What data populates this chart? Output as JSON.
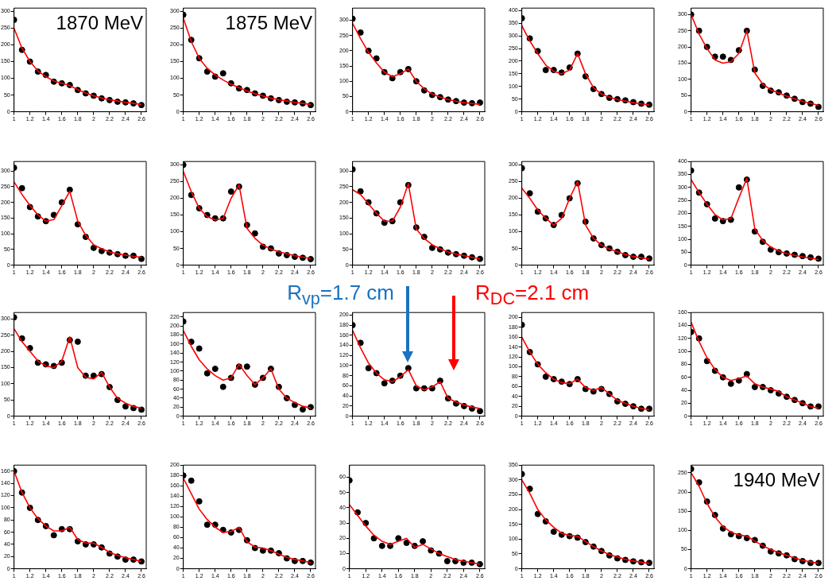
{
  "chart_data": [
    {
      "type": "scatter",
      "x": [
        1.0,
        1.1,
        1.2,
        1.3,
        1.4,
        1.5,
        1.6,
        1.7,
        1.8,
        1.9,
        2.0,
        2.1,
        2.2,
        2.3,
        2.4,
        2.5,
        2.6
      ],
      "xlim": [
        1,
        2.66
      ],
      "xticks": [
        1,
        1.2,
        1.4,
        1.6,
        1.8,
        2,
        2.2,
        2.4,
        2.6
      ],
      "ylim": [
        0,
        310
      ],
      "yticks": [
        0,
        50,
        100,
        150,
        200,
        250,
        300
      ],
      "annotations": [
        "1870 MeV"
      ],
      "series": [
        {
          "marker": "circle",
          "color": "#000000",
          "values": [
            275,
            185,
            150,
            120,
            110,
            90,
            85,
            80,
            65,
            55,
            48,
            40,
            35,
            30,
            28,
            25,
            20
          ]
        },
        {
          "type": "line",
          "color": "#ff0000",
          "values": [
            250,
            190,
            150,
            122,
            105,
            92,
            85,
            78,
            66,
            56,
            48,
            41,
            36,
            32,
            28,
            25,
            22
          ]
        }
      ]
    },
    {
      "type": "scatter",
      "x": [
        1.0,
        1.1,
        1.2,
        1.3,
        1.4,
        1.5,
        1.6,
        1.7,
        1.8,
        1.9,
        2.0,
        2.1,
        2.2,
        2.3,
        2.4,
        2.5,
        2.6
      ],
      "xlim": [
        1,
        2.66
      ],
      "xticks": [
        1,
        1.2,
        1.4,
        1.6,
        1.8,
        2,
        2.2,
        2.4,
        2.6
      ],
      "ylim": [
        0,
        310
      ],
      "yticks": [
        0,
        50,
        100,
        150,
        200,
        250,
        300
      ],
      "annotations": [
        "1875 MeV"
      ],
      "series": [
        {
          "marker": "circle",
          "color": "#000000",
          "values": [
            290,
            215,
            160,
            120,
            105,
            115,
            85,
            70,
            65,
            55,
            48,
            40,
            35,
            30,
            28,
            25,
            20
          ]
        },
        {
          "type": "line",
          "color": "#ff0000",
          "values": [
            280,
            210,
            160,
            130,
            110,
            95,
            82,
            72,
            62,
            54,
            47,
            41,
            36,
            32,
            28,
            25,
            22
          ]
        }
      ]
    },
    {
      "type": "scatter",
      "x": [
        1.0,
        1.1,
        1.2,
        1.3,
        1.4,
        1.5,
        1.6,
        1.7,
        1.8,
        1.9,
        2.0,
        2.1,
        2.2,
        2.3,
        2.4,
        2.5,
        2.6
      ],
      "xlim": [
        1,
        2.66
      ],
      "xticks": [
        1,
        1.2,
        1.4,
        1.6,
        1.8,
        2,
        2.2,
        2.4,
        2.6
      ],
      "ylim": [
        0,
        340
      ],
      "yticks": [
        0,
        50,
        100,
        150,
        200,
        250,
        300
      ],
      "series": [
        {
          "marker": "circle",
          "color": "#000000",
          "values": [
            305,
            260,
            200,
            175,
            130,
            110,
            130,
            140,
            100,
            70,
            55,
            48,
            40,
            35,
            30,
            28,
            30
          ]
        },
        {
          "type": "line",
          "color": "#ff0000",
          "values": [
            290,
            240,
            195,
            160,
            130,
            115,
            125,
            140,
            100,
            75,
            58,
            48,
            40,
            34,
            30,
            27,
            24
          ]
        }
      ]
    },
    {
      "type": "scatter",
      "x": [
        1.0,
        1.1,
        1.2,
        1.3,
        1.4,
        1.5,
        1.6,
        1.7,
        1.8,
        1.9,
        2.0,
        2.1,
        2.2,
        2.3,
        2.4,
        2.5,
        2.6
      ],
      "xlim": [
        1,
        2.66
      ],
      "xticks": [
        1,
        1.2,
        1.4,
        1.6,
        1.8,
        2,
        2.2,
        2.4,
        2.6
      ],
      "ylim": [
        0,
        410
      ],
      "yticks": [
        0,
        50,
        100,
        150,
        200,
        250,
        300,
        350,
        400
      ],
      "series": [
        {
          "marker": "circle",
          "color": "#000000",
          "values": [
            370,
            290,
            240,
            165,
            165,
            155,
            175,
            230,
            140,
            90,
            70,
            55,
            50,
            45,
            38,
            32,
            28
          ]
        },
        {
          "type": "line",
          "color": "#ff0000",
          "values": [
            340,
            280,
            230,
            185,
            160,
            150,
            165,
            230,
            150,
            95,
            70,
            58,
            48,
            42,
            36,
            31,
            27
          ]
        }
      ]
    },
    {
      "type": "scatter",
      "x": [
        1.0,
        1.1,
        1.2,
        1.3,
        1.4,
        1.5,
        1.6,
        1.7,
        1.8,
        1.9,
        2.0,
        2.1,
        2.2,
        2.3,
        2.4,
        2.5,
        2.6
      ],
      "xlim": [
        1,
        2.66
      ],
      "xticks": [
        1,
        1.2,
        1.4,
        1.6,
        1.8,
        2,
        2.2,
        2.4,
        2.6
      ],
      "ylim": [
        0,
        320
      ],
      "yticks": [
        0,
        50,
        100,
        150,
        200,
        250,
        300
      ],
      "series": [
        {
          "marker": "circle",
          "color": "#000000",
          "values": [
            300,
            250,
            200,
            170,
            170,
            160,
            190,
            250,
            130,
            80,
            65,
            60,
            50,
            40,
            30,
            25,
            15
          ]
        },
        {
          "type": "line",
          "color": "#ff0000",
          "values": [
            300,
            240,
            195,
            160,
            150,
            155,
            180,
            250,
            120,
            85,
            68,
            58,
            48,
            40,
            32,
            26,
            20
          ]
        }
      ]
    },
    {
      "type": "scatter",
      "x": [
        1.0,
        1.1,
        1.2,
        1.3,
        1.4,
        1.5,
        1.6,
        1.7,
        1.8,
        1.9,
        2.0,
        2.1,
        2.2,
        2.3,
        2.4,
        2.5,
        2.6
      ],
      "xlim": [
        1,
        2.66
      ],
      "xticks": [
        1,
        1.2,
        1.4,
        1.6,
        1.8,
        2,
        2.2,
        2.4,
        2.6
      ],
      "ylim": [
        0,
        330
      ],
      "yticks": [
        0,
        50,
        100,
        150,
        200,
        250,
        300
      ],
      "series": [
        {
          "marker": "circle",
          "color": "#000000",
          "values": [
            310,
            245,
            185,
            155,
            140,
            160,
            200,
            240,
            130,
            90,
            55,
            45,
            40,
            35,
            30,
            30,
            20
          ]
        },
        {
          "type": "line",
          "color": "#ff0000",
          "values": [
            265,
            225,
            190,
            160,
            140,
            145,
            190,
            235,
            140,
            95,
            65,
            52,
            42,
            36,
            32,
            28,
            25
          ]
        }
      ]
    },
    {
      "type": "scatter",
      "x": [
        1.0,
        1.1,
        1.2,
        1.3,
        1.4,
        1.5,
        1.6,
        1.7,
        1.8,
        1.9,
        2.0,
        2.1,
        2.2,
        2.3,
        2.4,
        2.5,
        2.6
      ],
      "xlim": [
        1,
        2.66
      ],
      "xticks": [
        1,
        1.2,
        1.4,
        1.6,
        1.8,
        2,
        2.2,
        2.4,
        2.6
      ],
      "ylim": [
        0,
        310
      ],
      "yticks": [
        0,
        50,
        100,
        150,
        200,
        250,
        300
      ],
      "series": [
        {
          "marker": "circle",
          "color": "#000000",
          "values": [
            300,
            210,
            170,
            150,
            140,
            140,
            220,
            235,
            120,
            95,
            55,
            50,
            35,
            30,
            25,
            22,
            18
          ]
        },
        {
          "type": "line",
          "color": "#ff0000",
          "values": [
            280,
            220,
            170,
            145,
            135,
            140,
            200,
            240,
            110,
            80,
            60,
            48,
            40,
            34,
            28,
            24,
            20
          ]
        }
      ]
    },
    {
      "type": "scatter",
      "x": [
        1.0,
        1.1,
        1.2,
        1.3,
        1.4,
        1.5,
        1.6,
        1.7,
        1.8,
        1.9,
        2.0,
        2.1,
        2.2,
        2.3,
        2.4,
        2.5,
        2.6
      ],
      "xlim": [
        1,
        2.66
      ],
      "xticks": [
        1,
        1.2,
        1.4,
        1.6,
        1.8,
        2,
        2.2,
        2.4,
        2.6
      ],
      "ylim": [
        0,
        330
      ],
      "yticks": [
        0,
        50,
        100,
        150,
        200,
        250,
        300
      ],
      "series": [
        {
          "marker": "circle",
          "color": "#000000",
          "values": [
            305,
            235,
            200,
            165,
            135,
            140,
            200,
            255,
            120,
            90,
            55,
            50,
            40,
            35,
            30,
            25,
            20
          ]
        },
        {
          "type": "line",
          "color": "#ff0000",
          "values": [
            240,
            225,
            195,
            165,
            140,
            140,
            185,
            260,
            115,
            85,
            65,
            52,
            42,
            35,
            30,
            25,
            20
          ]
        }
      ]
    },
    {
      "type": "scatter",
      "x": [
        1.0,
        1.1,
        1.2,
        1.3,
        1.4,
        1.5,
        1.6,
        1.7,
        1.8,
        1.9,
        2.0,
        2.1,
        2.2,
        2.3,
        2.4,
        2.5,
        2.6
      ],
      "xlim": [
        1,
        2.66
      ],
      "xticks": [
        1,
        1.2,
        1.4,
        1.6,
        1.8,
        2,
        2.2,
        2.4,
        2.6
      ],
      "ylim": [
        0,
        310
      ],
      "yticks": [
        0,
        50,
        100,
        150,
        200,
        250,
        300
      ],
      "series": [
        {
          "marker": "circle",
          "color": "#000000",
          "values": [
            290,
            215,
            160,
            140,
            120,
            150,
            200,
            245,
            130,
            80,
            60,
            50,
            40,
            30,
            25,
            25,
            20
          ]
        },
        {
          "type": "line",
          "color": "#ff0000",
          "values": [
            230,
            200,
            165,
            140,
            120,
            140,
            200,
            250,
            120,
            80,
            60,
            48,
            40,
            32,
            26,
            22,
            18
          ]
        }
      ]
    },
    {
      "type": "scatter",
      "x": [
        1.0,
        1.1,
        1.2,
        1.3,
        1.4,
        1.5,
        1.6,
        1.7,
        1.8,
        1.9,
        2.0,
        2.1,
        2.2,
        2.3,
        2.4,
        2.5,
        2.6
      ],
      "xlim": [
        1,
        2.66
      ],
      "xticks": [
        1,
        1.2,
        1.4,
        1.6,
        1.8,
        2,
        2.2,
        2.4,
        2.6
      ],
      "ylim": [
        0,
        400
      ],
      "yticks": [
        0,
        50,
        100,
        150,
        200,
        250,
        300,
        350,
        400
      ],
      "series": [
        {
          "marker": "circle",
          "color": "#000000",
          "values": [
            365,
            280,
            235,
            180,
            170,
            175,
            300,
            330,
            130,
            90,
            60,
            50,
            45,
            40,
            35,
            30,
            25
          ]
        },
        {
          "type": "line",
          "color": "#ff0000",
          "values": [
            330,
            280,
            235,
            195,
            175,
            180,
            260,
            335,
            140,
            95,
            70,
            55,
            45,
            38,
            32,
            27,
            22
          ]
        }
      ]
    },
    {
      "type": "scatter",
      "x": [
        1.0,
        1.1,
        1.2,
        1.3,
        1.4,
        1.5,
        1.6,
        1.7,
        1.8,
        1.9,
        2.0,
        2.1,
        2.2,
        2.3,
        2.4,
        2.5,
        2.6
      ],
      "xlim": [
        1,
        2.66
      ],
      "xticks": [
        1,
        1.2,
        1.4,
        1.6,
        1.8,
        2,
        2.2,
        2.4,
        2.6
      ],
      "ylim": [
        0,
        320
      ],
      "yticks": [
        0,
        50,
        100,
        150,
        200,
        250,
        300
      ],
      "series": [
        {
          "marker": "circle",
          "color": "#000000",
          "values": [
            305,
            240,
            210,
            165,
            160,
            155,
            165,
            235,
            230,
            125,
            125,
            130,
            90,
            50,
            30,
            25,
            20
          ]
        },
        {
          "type": "line",
          "color": "#ff0000",
          "values": [
            270,
            230,
            200,
            170,
            155,
            150,
            170,
            245,
            150,
            120,
            115,
            135,
            90,
            55,
            40,
            30,
            25
          ]
        }
      ]
    },
    {
      "type": "scatter",
      "x": [
        1.0,
        1.1,
        1.2,
        1.3,
        1.4,
        1.5,
        1.6,
        1.7,
        1.8,
        1.9,
        2.0,
        2.1,
        2.2,
        2.3,
        2.4,
        2.5,
        2.6
      ],
      "xlim": [
        1,
        2.66
      ],
      "xticks": [
        1,
        1.2,
        1.4,
        1.6,
        1.8,
        2,
        2.2,
        2.4,
        2.6
      ],
      "ylim": [
        0,
        230
      ],
      "yticks": [
        0,
        20,
        40,
        60,
        80,
        100,
        120,
        140,
        160,
        180,
        200,
        220
      ],
      "series": [
        {
          "marker": "circle",
          "color": "#000000",
          "values": [
            210,
            165,
            150,
            95,
            105,
            65,
            85,
            110,
            110,
            70,
            85,
            105,
            65,
            40,
            25,
            15,
            20
          ]
        },
        {
          "type": "line",
          "color": "#ff0000",
          "values": [
            190,
            155,
            125,
            105,
            90,
            80,
            85,
            115,
            90,
            70,
            85,
            105,
            60,
            40,
            30,
            22,
            18
          ]
        }
      ]
    },
    {
      "type": "scatter",
      "x": [
        1.0,
        1.1,
        1.2,
        1.3,
        1.4,
        1.5,
        1.6,
        1.7,
        1.8,
        1.9,
        2.0,
        2.1,
        2.2,
        2.3,
        2.4,
        2.5,
        2.6
      ],
      "xlim": [
        1,
        2.66
      ],
      "xticks": [
        1,
        1.2,
        1.4,
        1.6,
        1.8,
        2,
        2.2,
        2.4,
        2.6
      ],
      "ylim": [
        0,
        205
      ],
      "yticks": [
        0,
        20,
        40,
        60,
        80,
        100,
        120,
        140,
        160,
        180,
        200
      ],
      "annotations": [
        "R$_{vp}$=1.7 cm",
        "R$_{DC}$=2.1 cm"
      ],
      "series": [
        {
          "marker": "circle",
          "color": "#000000",
          "values": [
            180,
            145,
            95,
            85,
            65,
            70,
            80,
            95,
            55,
            55,
            55,
            70,
            35,
            25,
            20,
            15,
            10
          ]
        },
        {
          "type": "line",
          "color": "#ff0000",
          "values": [
            170,
            135,
            105,
            85,
            72,
            68,
            78,
            92,
            60,
            52,
            58,
            68,
            35,
            28,
            22,
            18,
            15
          ]
        }
      ]
    },
    {
      "type": "scatter",
      "x": [
        1.0,
        1.1,
        1.2,
        1.3,
        1.4,
        1.5,
        1.6,
        1.7,
        1.8,
        1.9,
        2.0,
        2.1,
        2.2,
        2.3,
        2.4,
        2.5,
        2.6
      ],
      "xlim": [
        1,
        2.66
      ],
      "xticks": [
        1,
        1.2,
        1.4,
        1.6,
        1.8,
        2,
        2.2,
        2.4,
        2.6
      ],
      "ylim": [
        0,
        210
      ],
      "yticks": [
        0,
        20,
        40,
        60,
        80,
        100,
        120,
        140,
        160,
        180,
        200
      ],
      "series": [
        {
          "marker": "circle",
          "color": "#000000",
          "values": [
            185,
            130,
            105,
            80,
            75,
            70,
            65,
            75,
            55,
            50,
            55,
            45,
            30,
            25,
            20,
            15,
            15
          ]
        },
        {
          "type": "line",
          "color": "#ff0000",
          "values": [
            160,
            130,
            105,
            88,
            75,
            68,
            66,
            75,
            58,
            52,
            58,
            45,
            32,
            26,
            20,
            16,
            13
          ]
        }
      ]
    },
    {
      "type": "scatter",
      "x": [
        1.0,
        1.1,
        1.2,
        1.3,
        1.4,
        1.5,
        1.6,
        1.7,
        1.8,
        1.9,
        2.0,
        2.1,
        2.2,
        2.3,
        2.4,
        2.5,
        2.6
      ],
      "xlim": [
        1,
        2.66
      ],
      "xticks": [
        1,
        1.2,
        1.4,
        1.6,
        1.8,
        2,
        2.2,
        2.4,
        2.6
      ],
      "ylim": [
        0,
        160
      ],
      "yticks": [
        0,
        20,
        40,
        60,
        80,
        100,
        120,
        140,
        160
      ],
      "series": [
        {
          "marker": "circle",
          "color": "#000000",
          "values": [
            130,
            120,
            85,
            70,
            60,
            50,
            55,
            65,
            45,
            45,
            40,
            35,
            30,
            25,
            20,
            15,
            15
          ]
        },
        {
          "type": "line",
          "color": "#ff0000",
          "values": [
            145,
            115,
            90,
            72,
            60,
            55,
            58,
            62,
            50,
            45,
            42,
            38,
            30,
            25,
            20,
            15,
            12
          ]
        }
      ]
    },
    {
      "type": "scatter",
      "x": [
        1.0,
        1.1,
        1.2,
        1.3,
        1.4,
        1.5,
        1.6,
        1.7,
        1.8,
        1.9,
        2.0,
        2.1,
        2.2,
        2.3,
        2.4,
        2.5,
        2.6
      ],
      "xlim": [
        1,
        2.66
      ],
      "xticks": [
        1,
        1.2,
        1.4,
        1.6,
        1.8,
        2,
        2.2,
        2.4,
        2.6
      ],
      "ylim": [
        0,
        170
      ],
      "yticks": [
        0,
        20,
        40,
        60,
        80,
        100,
        120,
        140,
        160
      ],
      "series": [
        {
          "marker": "circle",
          "color": "#000000",
          "values": [
            160,
            125,
            100,
            80,
            70,
            55,
            65,
            65,
            45,
            40,
            40,
            35,
            25,
            20,
            15,
            15,
            12
          ]
        },
        {
          "type": "line",
          "color": "#ff0000",
          "values": [
            160,
            125,
            100,
            82,
            70,
            62,
            62,
            68,
            48,
            42,
            42,
            35,
            27,
            22,
            18,
            15,
            12
          ]
        }
      ]
    },
    {
      "type": "scatter",
      "x": [
        1.0,
        1.1,
        1.2,
        1.3,
        1.4,
        1.5,
        1.6,
        1.7,
        1.8,
        1.9,
        2.0,
        2.1,
        2.2,
        2.3,
        2.4,
        2.5,
        2.6
      ],
      "xlim": [
        1,
        2.66
      ],
      "xticks": [
        1,
        1.2,
        1.4,
        1.6,
        1.8,
        2,
        2.2,
        2.4,
        2.6
      ],
      "ylim": [
        0,
        200
      ],
      "yticks": [
        0,
        20,
        40,
        60,
        80,
        100,
        120,
        140,
        160,
        180,
        200
      ],
      "series": [
        {
          "marker": "circle",
          "color": "#000000",
          "values": [
            180,
            170,
            130,
            85,
            85,
            75,
            70,
            75,
            55,
            40,
            35,
            35,
            30,
            20,
            15,
            15,
            12
          ]
        },
        {
          "type": "line",
          "color": "#ff0000",
          "values": [
            175,
            145,
            115,
            95,
            80,
            70,
            72,
            80,
            52,
            42,
            40,
            35,
            28,
            22,
            18,
            15,
            12
          ]
        }
      ]
    },
    {
      "type": "scatter",
      "x": [
        1.0,
        1.1,
        1.2,
        1.3,
        1.4,
        1.5,
        1.6,
        1.7,
        1.8,
        1.9,
        2.0,
        2.1,
        2.2,
        2.3,
        2.4,
        2.5,
        2.6
      ],
      "xlim": [
        1,
        2.66
      ],
      "xticks": [
        1,
        1.2,
        1.4,
        1.6,
        1.8,
        2,
        2.2,
        2.4,
        2.6
      ],
      "ylim": [
        0,
        68
      ],
      "yticks": [
        0,
        10,
        20,
        30,
        40,
        50,
        60
      ],
      "series": [
        {
          "marker": "circle",
          "color": "#000000",
          "values": [
            58,
            37,
            30,
            20,
            15,
            15,
            20,
            17,
            15,
            18,
            12,
            10,
            5,
            5,
            4,
            4,
            3
          ]
        },
        {
          "type": "line",
          "color": "#ff0000",
          "values": [
            42,
            35,
            28,
            22,
            18,
            16,
            18,
            20,
            14,
            16,
            13,
            10,
            8,
            6,
            5,
            4,
            3
          ]
        }
      ]
    },
    {
      "type": "scatter",
      "x": [
        1.0,
        1.1,
        1.2,
        1.3,
        1.4,
        1.5,
        1.6,
        1.7,
        1.8,
        1.9,
        2.0,
        2.1,
        2.2,
        2.3,
        2.4,
        2.5,
        2.6
      ],
      "xlim": [
        1,
        2.66
      ],
      "xticks": [
        1,
        1.2,
        1.4,
        1.6,
        1.8,
        2,
        2.2,
        2.4,
        2.6
      ],
      "ylim": [
        0,
        350
      ],
      "yticks": [
        0,
        50,
        100,
        150,
        200,
        250,
        300,
        350
      ],
      "series": [
        {
          "marker": "circle",
          "color": "#000000",
          "values": [
            320,
            270,
            185,
            160,
            125,
            115,
            110,
            105,
            90,
            75,
            60,
            45,
            35,
            30,
            25,
            22,
            20
          ]
        },
        {
          "type": "line",
          "color": "#ff0000",
          "values": [
            300,
            255,
            200,
            165,
            140,
            120,
            112,
            110,
            92,
            75,
            60,
            48,
            40,
            32,
            26,
            22,
            18
          ]
        }
      ]
    },
    {
      "type": "scatter",
      "x": [
        1.0,
        1.1,
        1.2,
        1.3,
        1.4,
        1.5,
        1.6,
        1.7,
        1.8,
        1.9,
        2.0,
        2.1,
        2.2,
        2.3,
        2.4,
        2.5,
        2.6
      ],
      "xlim": [
        1,
        2.66
      ],
      "xticks": [
        1,
        1.2,
        1.4,
        1.6,
        1.8,
        2,
        2.2,
        2.4,
        2.6
      ],
      "ylim": [
        0,
        270
      ],
      "yticks": [
        0,
        50,
        100,
        150,
        200,
        250
      ],
      "annotations": [
        "1940 MeV"
      ],
      "series": [
        {
          "marker": "circle",
          "color": "#000000",
          "values": [
            260,
            225,
            175,
            140,
            105,
            90,
            85,
            80,
            75,
            60,
            45,
            40,
            35,
            25,
            20,
            15,
            15
          ]
        },
        {
          "type": "line",
          "color": "#ff0000",
          "values": [
            250,
            215,
            170,
            135,
            110,
            95,
            88,
            85,
            72,
            60,
            50,
            42,
            35,
            28,
            22,
            18,
            14
          ]
        }
      ]
    }
  ]
}
